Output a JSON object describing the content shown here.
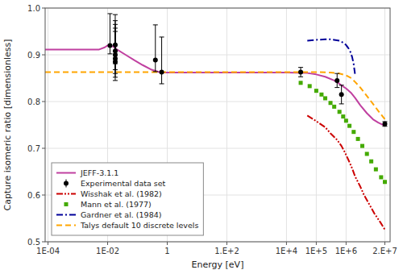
{
  "chart_data": {
    "type": "line",
    "xlabel": "Energy [eV]",
    "ylabel": "Capture isomeric ratio [dimensionless]",
    "log": "x",
    "grid": true,
    "legend": "lower left",
    "xlim": [
      8e-05,
      30000000.0
    ],
    "ylim": [
      0.5,
      1.0
    ],
    "xticks": [
      {
        "value": 0.0001,
        "label": "1E-04"
      },
      {
        "value": 0.01,
        "label": "1E-02"
      },
      1,
      {
        "value": 100,
        "label": "1.E+2"
      },
      {
        "value": 10000,
        "label": "1E+4"
      },
      {
        "value": 100000,
        "label": "1E+5"
      },
      {
        "value": 1000000,
        "label": "1E+6"
      },
      {
        "value": 20000000,
        "label": "2.E+7"
      }
    ],
    "yticks": [
      0.5,
      0.6,
      0.7,
      0.8,
      0.9,
      {
        "value": 1.0,
        "label": "1.0"
      }
    ],
    "series": [
      {
        "name": "JEFF-3.1.1",
        "type": "line",
        "line_style": "solid",
        "color": "#C040A0",
        "x": [
          8e-05,
          0.0001,
          0.0005,
          0.001,
          0.005,
          0.008,
          0.01,
          0.015,
          0.02,
          0.04,
          0.08,
          0.15,
          0.3,
          0.6,
          1.0,
          3.0,
          10.0,
          100.0,
          1000.0,
          10000.0,
          50000.0,
          100000.0,
          200000.0,
          400000.0,
          600000.0,
          800000.0,
          1000000.0,
          1500000.0,
          2000000.0,
          3000000.0,
          5000000.0,
          8000000.0,
          12000000.0,
          20000000.0
        ],
        "values": [
          0.911,
          0.911,
          0.911,
          0.911,
          0.911,
          0.916,
          0.92,
          0.918,
          0.912,
          0.9,
          0.888,
          0.878,
          0.868,
          0.862,
          0.862,
          0.862,
          0.862,
          0.862,
          0.862,
          0.862,
          0.861,
          0.858,
          0.853,
          0.845,
          0.838,
          0.832,
          0.828,
          0.818,
          0.808,
          0.792,
          0.775,
          0.762,
          0.755,
          0.748
        ]
      },
      {
        "name": "Experimental data set",
        "type": "scatter",
        "marker": "circle",
        "color": "#000000",
        "x": [
          0.012,
          0.018,
          0.018,
          0.018,
          0.018,
          0.018,
          0.4,
          0.65,
          30000.0,
          500000.0,
          700000.0,
          20000000.0
        ],
        "values": [
          0.92,
          0.921,
          0.908,
          0.9,
          0.892,
          0.885,
          0.889,
          0.863,
          0.863,
          0.845,
          0.815,
          0.752
        ],
        "error_low": [
          0.018,
          0.04,
          0.04,
          0.04,
          0.04,
          0.04,
          0.025,
          0.025,
          0.01,
          0.015,
          0.02,
          0.005
        ],
        "error_high": [
          0.068,
          0.065,
          0.065,
          0.065,
          0.065,
          0.065,
          0.075,
          0.075,
          0.01,
          0.015,
          0.02,
          0.005
        ]
      },
      {
        "name": "Wisshak et al. (1982)",
        "type": "line",
        "line_style": "dash-dot-dot",
        "color": "#CC0000",
        "x": [
          50000.0,
          100000.0,
          200000.0,
          300000.0,
          500000.0,
          700000.0,
          900000.0,
          1200000.0,
          1600000.0,
          2000000.0,
          3000000.0,
          4000000.0,
          6000000.0,
          9000000.0,
          14000000.0,
          20000000.0
        ],
        "values": [
          0.77,
          0.758,
          0.745,
          0.732,
          0.718,
          0.705,
          0.692,
          0.675,
          0.657,
          0.64,
          0.618,
          0.6,
          0.58,
          0.56,
          0.542,
          0.526
        ]
      },
      {
        "name": "Mann et al. (1977)",
        "type": "scatter",
        "marker": "square",
        "color": "#44AA00",
        "x": [
          30000.0,
          60000.0,
          100000.0,
          150000.0,
          200000.0,
          300000.0,
          400000.0,
          600000.0,
          800000.0,
          1000000.0,
          1300000.0,
          1800000.0,
          2500000.0,
          3500000.0,
          5000000.0,
          7000000.0,
          10000000.0,
          15000000.0,
          20000000.0
        ],
        "values": [
          0.84,
          0.833,
          0.823,
          0.815,
          0.807,
          0.797,
          0.789,
          0.778,
          0.768,
          0.759,
          0.748,
          0.735,
          0.72,
          0.705,
          0.688,
          0.672,
          0.655,
          0.638,
          0.628
        ]
      },
      {
        "name": "Gardner et al. (1984)",
        "type": "line",
        "line_style": "dash-dot",
        "color": "#000099",
        "x": [
          50000.0,
          100000.0,
          200000.0,
          300000.0,
          400000.0,
          600000.0,
          800000.0,
          1000000.0,
          1200000.0,
          1400000.0,
          1600000.0,
          1800000.0,
          2000000.0
        ],
        "values": [
          0.93,
          0.932,
          0.933,
          0.933,
          0.932,
          0.93,
          0.926,
          0.921,
          0.914,
          0.906,
          0.895,
          0.88,
          0.858
        ]
      },
      {
        "name": "Talys default 10 discrete levels",
        "type": "line",
        "line_style": "dashed",
        "color": "#FFA500",
        "x": [
          8e-05,
          0.001,
          0.01,
          0.1,
          1.0,
          10.0,
          100.0,
          1000.0,
          10000.0,
          50000.0,
          100000.0,
          300000.0,
          600000.0,
          1000000.0,
          1500000.0,
          2000000.0,
          3000000.0,
          5000000.0,
          8000000.0,
          12000000.0,
          20000000.0
        ],
        "values": [
          0.863,
          0.863,
          0.863,
          0.863,
          0.863,
          0.863,
          0.863,
          0.863,
          0.863,
          0.863,
          0.863,
          0.862,
          0.86,
          0.856,
          0.85,
          0.842,
          0.83,
          0.812,
          0.795,
          0.78,
          0.762
        ]
      }
    ]
  }
}
